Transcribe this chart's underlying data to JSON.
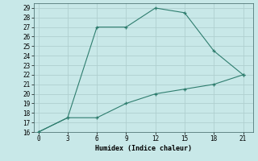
{
  "xlabel": "Humidex (Indice chaleur)",
  "line1_x": [
    0,
    3,
    6,
    9,
    12,
    15,
    18,
    21
  ],
  "line1_y": [
    16,
    17.5,
    27,
    27,
    29,
    28.5,
    24.5,
    22
  ],
  "line2_x": [
    0,
    3,
    6,
    9,
    12,
    15,
    18,
    21
  ],
  "line2_y": [
    16,
    17.5,
    17.5,
    19,
    20,
    20.5,
    21,
    22
  ],
  "line_color": "#2e7d6e",
  "bg_color": "#c8e8e8",
  "grid_color": "#b0cfcf",
  "xlim": [
    -0.5,
    22
  ],
  "ylim": [
    16,
    29.5
  ],
  "xticks": [
    0,
    3,
    6,
    9,
    12,
    15,
    18,
    21
  ],
  "yticks": [
    16,
    17,
    18,
    19,
    20,
    21,
    22,
    23,
    24,
    25,
    26,
    27,
    28,
    29
  ]
}
